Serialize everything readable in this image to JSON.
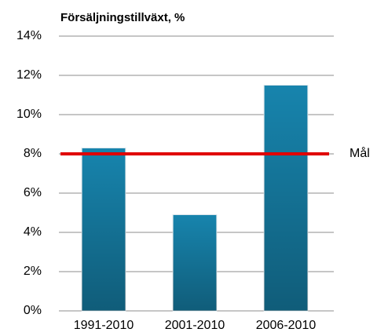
{
  "chart_data": {
    "type": "bar",
    "title": "Försäljningstillväxt, %",
    "categories": [
      "1991-2010",
      "2001-2010",
      "2006-2010"
    ],
    "values": [
      8.3,
      4.9,
      11.5
    ],
    "color": "#1784ad",
    "ylim": [
      0,
      14
    ],
    "yticks": [
      {
        "value": 0,
        "label": "0%"
      },
      {
        "value": 2,
        "label": "2%"
      },
      {
        "value": 4,
        "label": "4%"
      },
      {
        "value": 6,
        "label": "6%"
      },
      {
        "value": 8,
        "label": "8%"
      },
      {
        "value": 10,
        "label": "10%"
      },
      {
        "value": 12,
        "label": "12%"
      },
      {
        "value": 14,
        "label": "14%"
      }
    ],
    "grid": true,
    "target": {
      "value": 8,
      "label": "Mål",
      "color": "#e00000"
    }
  }
}
